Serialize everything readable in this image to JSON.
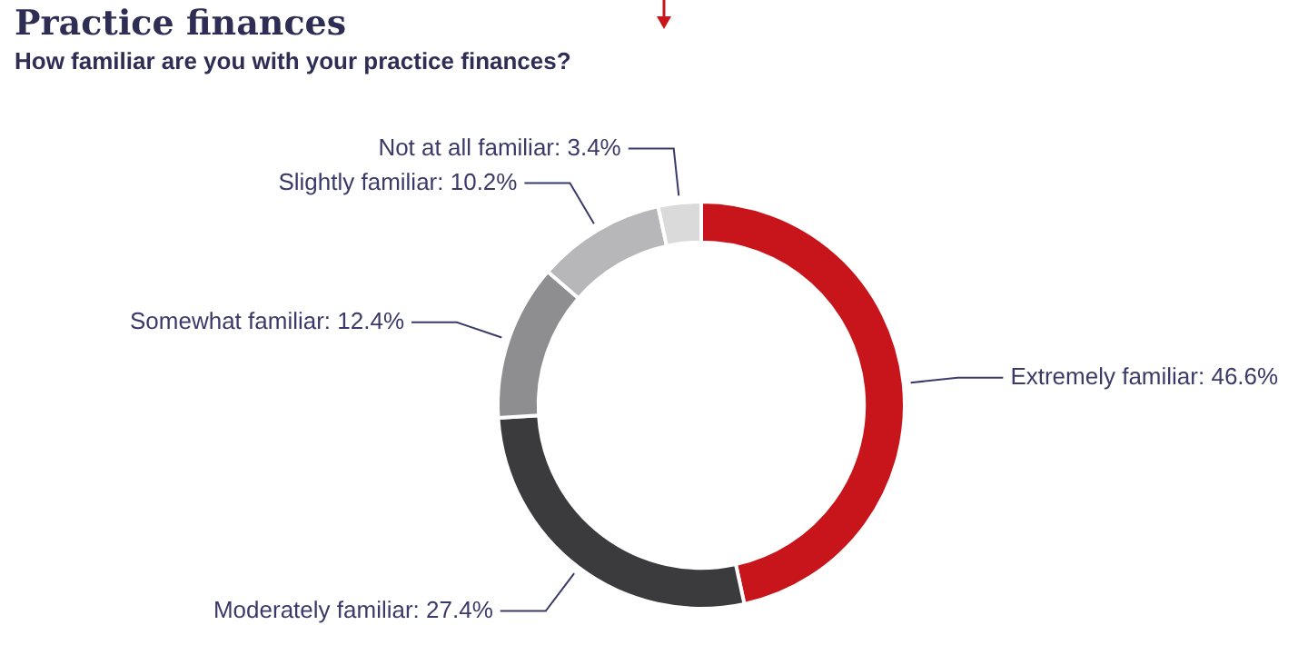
{
  "chart_data": {
    "type": "donut",
    "title": "Practice finances",
    "subtitle": "How familiar are you with your practice finances?",
    "categories": [
      "Extremely familiar",
      "Moderately familiar",
      "Somewhat familiar",
      "Slightly familiar",
      "Not at all familiar"
    ],
    "values": [
      46.6,
      27.4,
      12.4,
      10.2,
      3.4
    ],
    "value_labels": [
      "46.6%",
      "27.4%",
      "12.4%",
      "10.2%",
      "3.4%"
    ],
    "colors": [
      "#c8151c",
      "#3b3b3d",
      "#8e8e90",
      "#b7b7b9",
      "#dadadb"
    ],
    "legend": false
  }
}
